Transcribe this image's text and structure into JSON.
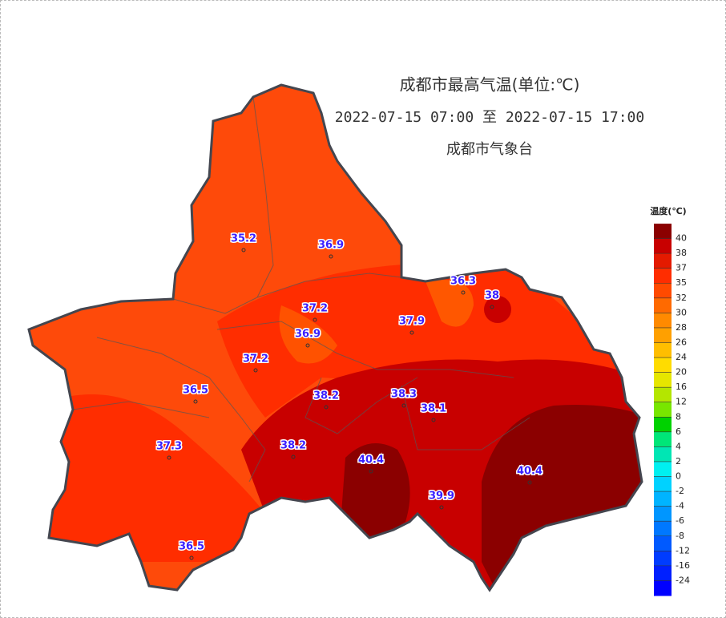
{
  "title": "成都市最高气温(单位:℃)",
  "subtitle": "2022-07-15 07:00 至 2022-07-15 17:00",
  "source": "成都市气象台",
  "stations": [
    35.2,
    36.9,
    36.3,
    38,
    37.2,
    36.9,
    37.9,
    37.2,
    36.5,
    38.2,
    38.3,
    38.1,
    38.2,
    40.4,
    40.4,
    39.9,
    37.3,
    36.5
  ],
  "legend": {
    "title": "温度(℃)",
    "levels": [
      40,
      38,
      37,
      35,
      32,
      30,
      28,
      26,
      24,
      20,
      16,
      12,
      8,
      6,
      4,
      2,
      0,
      -2,
      -4,
      -6,
      -8,
      -12,
      -16,
      -24
    ],
    "colors": [
      "#8b0000",
      "#c80000",
      "#e41a00",
      "#ff2d00",
      "#ff4a00",
      "#ff6a00",
      "#ff8a00",
      "#ffa000",
      "#ffbe00",
      "#ffdc00",
      "#e6e600",
      "#b4e600",
      "#78e600",
      "#00d200",
      "#00e678",
      "#00e6b4",
      "#00f0f0",
      "#00d2ff",
      "#00b4ff",
      "#0096ff",
      "#0078ff",
      "#005aff",
      "#003cff",
      "#0020ff",
      "#0000ff"
    ]
  }
}
